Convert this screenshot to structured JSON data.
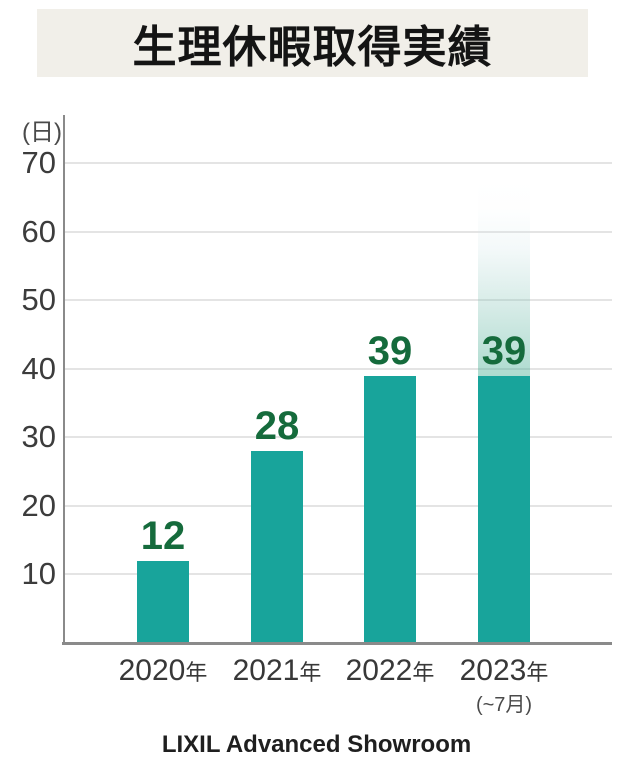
{
  "title": {
    "text": "生理休暇取得実績",
    "background": "#f1efe9"
  },
  "footer": {
    "text": "LIXIL Advanced Showroom"
  },
  "chart_data": {
    "type": "bar",
    "title": "生理休暇取得実績",
    "unit_label": "(日)",
    "categories": [
      "2020年",
      "2021年",
      "2022年",
      "2023年"
    ],
    "category_subnotes": [
      "",
      "",
      "",
      "(~7月)"
    ],
    "values": [
      12,
      28,
      39,
      39
    ],
    "value_labels": [
      "12",
      "28",
      "39",
      "39"
    ],
    "ylim": [
      0,
      70
    ],
    "yticks": [
      10,
      20,
      30,
      40,
      50,
      60,
      70
    ],
    "grid": true,
    "legend": "none",
    "bar_color": "#18a49b",
    "value_label_color": "#156b3c",
    "axis_color": "#8a8a8a",
    "gridline_color": "#e4e4e4",
    "tick_label_color": "#3c3c3c",
    "highlight": {
      "bar_index": 3,
      "style": "fade-gradient-above-bar",
      "gradient_top_value": 67.5
    }
  }
}
